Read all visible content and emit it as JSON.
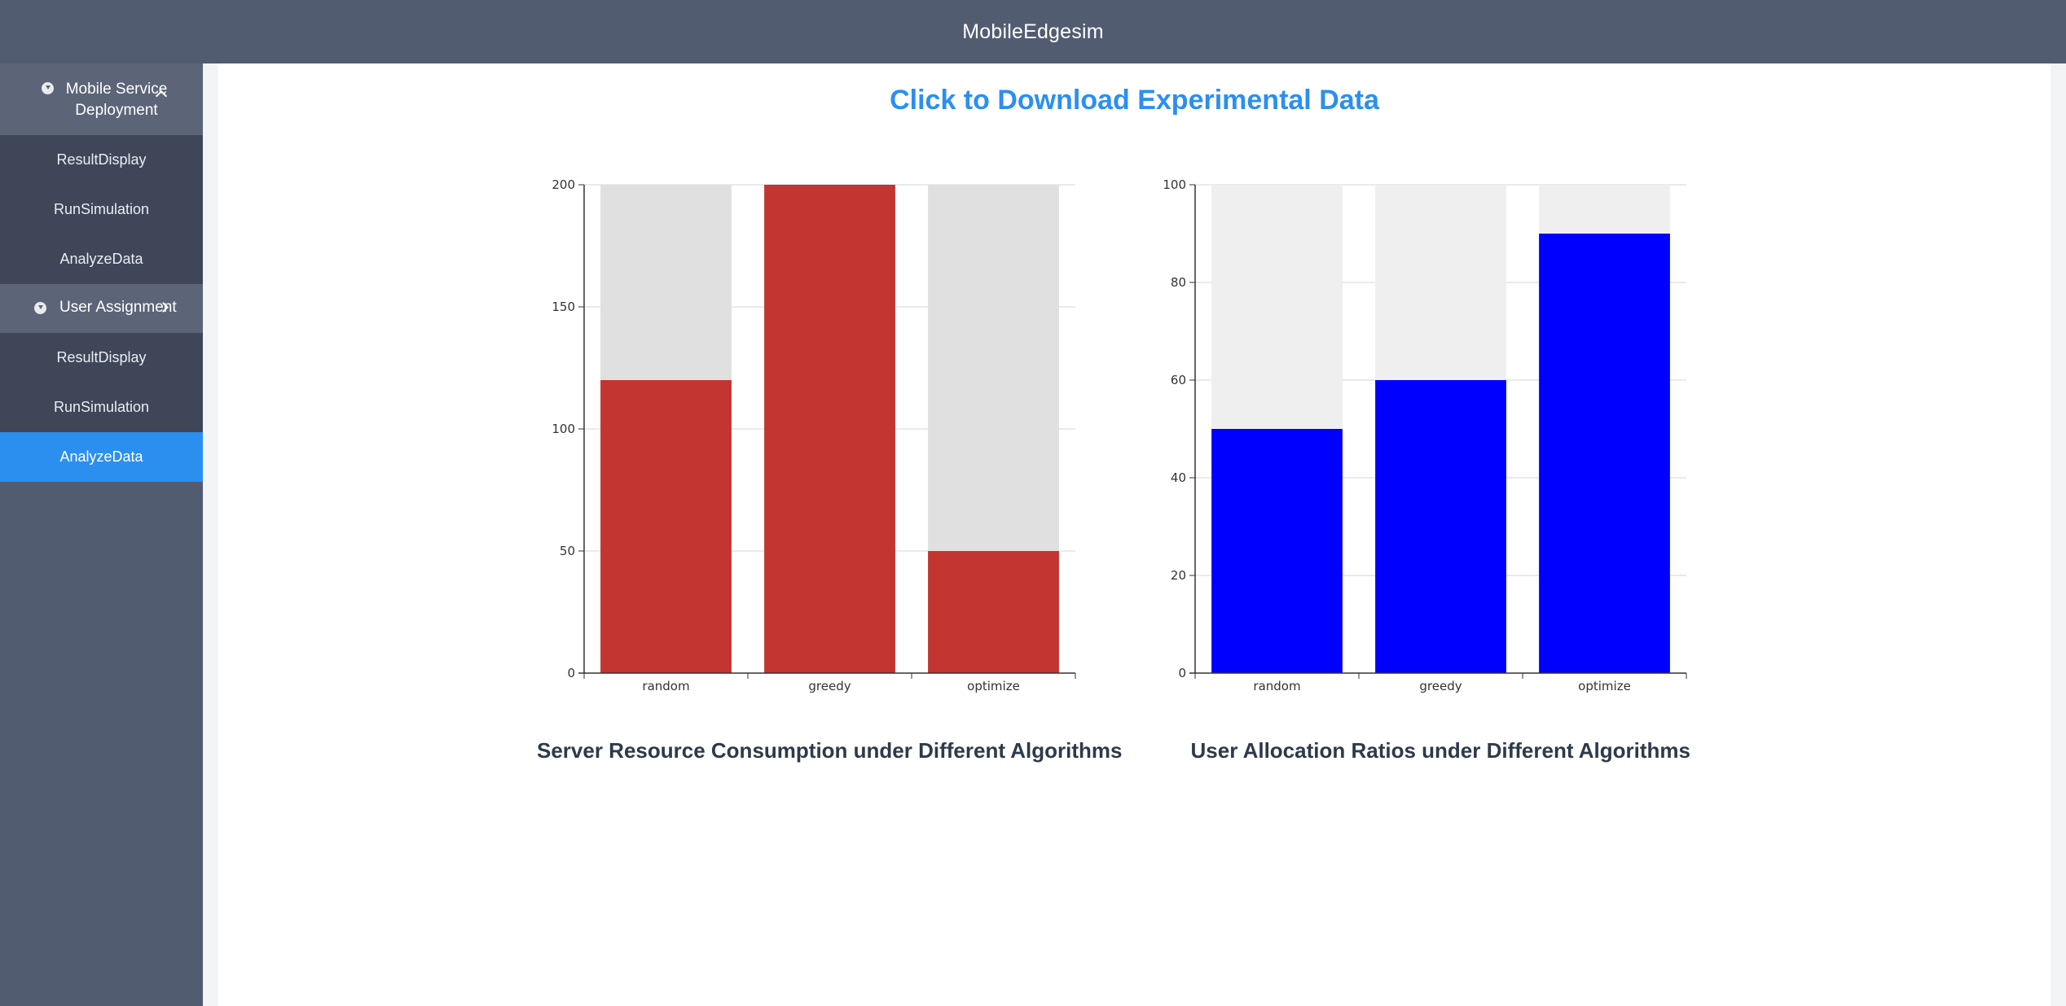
{
  "header": {
    "title": "MobileEdgesim"
  },
  "sidebar": {
    "groups": [
      {
        "label": "Mobile Service Deployment",
        "icon": "circle-chevron-icon",
        "expanded": true,
        "items": [
          {
            "label": "ResultDisplay"
          },
          {
            "label": "RunSimulation"
          },
          {
            "label": "AnalyzeData"
          }
        ]
      },
      {
        "label": "User Assignment",
        "icon": "circle-chevron-icon",
        "expanded": true,
        "items": [
          {
            "label": "ResultDisplay"
          },
          {
            "label": "RunSimulation"
          },
          {
            "label": "AnalyzeData",
            "active": true
          }
        ]
      }
    ]
  },
  "main": {
    "download_link": "Click to Download Experimental Data"
  },
  "chart_data": [
    {
      "type": "bar",
      "title": "Server Resource Consumption under Different Algorithms",
      "categories": [
        "random",
        "greedy",
        "optimize"
      ],
      "values": [
        120,
        200,
        50
      ],
      "background_max": 200,
      "ylim": [
        0,
        200
      ],
      "yticks": [
        0,
        50,
        100,
        150,
        200
      ],
      "grid": true,
      "bar_color": "#c23531",
      "background_color": "#e0e0e0"
    },
    {
      "type": "bar",
      "title": "User Allocation Ratios under Different Algorithms",
      "categories": [
        "random",
        "greedy",
        "optimize"
      ],
      "values": [
        50,
        60,
        90
      ],
      "background_max": 100,
      "ylim": [
        0,
        100
      ],
      "yticks": [
        0,
        20,
        40,
        60,
        80,
        100
      ],
      "grid": true,
      "bar_color": "#0000ff",
      "background_color": "#efefef"
    }
  ],
  "colors": {
    "accent": "#2b8ff0",
    "sidebar_bg": "#525c71",
    "submenu_bg": "#3e4658"
  }
}
